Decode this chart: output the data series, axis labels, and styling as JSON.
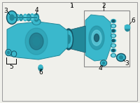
{
  "bg_color": "#f0f0eb",
  "border_color": "#999999",
  "pc": "#3ab8cc",
  "pcd": "#228899",
  "pcl": "#6ad4e4",
  "pcs": "#155566",
  "font_size": 6.5,
  "fig_width": 2.0,
  "fig_height": 1.47,
  "label_1": "1",
  "label_2": "2",
  "label_3": "3",
  "label_4": "4",
  "label_5": "5",
  "label_6": "6"
}
